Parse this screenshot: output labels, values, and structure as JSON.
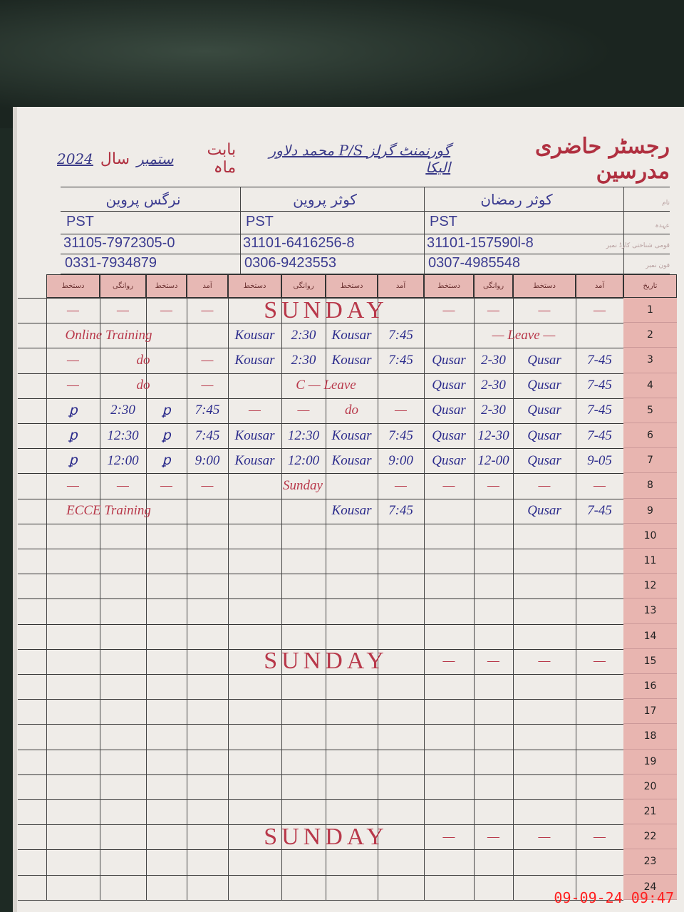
{
  "register": {
    "title_printed": "رجسٹر حاضری مدرسین",
    "school_handwritten": "گورنمنٹ گرلز P/S محمد دلاور الیکا",
    "month_label": "بابت ماہ",
    "month": "ستمبر",
    "year_label": "سال",
    "year": "2024"
  },
  "row_labels": {
    "name": "نام",
    "designation": "عہدہ",
    "cnic": "قومی شناختی کارڈ نمبر",
    "phone": "فون نمبر",
    "date": "تاریخ"
  },
  "teachers": [
    {
      "name": "نرگس پروین",
      "designation": "PST",
      "cnic": "31105-7972305-0",
      "phone": "0331-7934879"
    },
    {
      "name": "کوثر پروین",
      "designation": "PST",
      "cnic": "31101-6416256-8",
      "phone": "0306-9423553"
    },
    {
      "name": "کوثر رمضان",
      "designation": "PST",
      "cnic": "31101-157590l-8",
      "phone": "0307-4985548"
    }
  ],
  "column_headers": [
    "دستخط",
    "روانگی",
    "دستخط",
    "آمد"
  ],
  "rows": [
    {
      "day": "1",
      "segs": [
        [
          "—",
          1,
          "red"
        ],
        [
          "—",
          1,
          "red"
        ],
        [
          "—",
          1,
          "red"
        ],
        [
          "—",
          1,
          "red"
        ],
        [
          "SUNDAY",
          4,
          "sunday"
        ],
        [
          "—",
          1,
          "red"
        ],
        [
          "—",
          1,
          "red"
        ],
        [
          "—",
          1,
          "red"
        ],
        [
          "—",
          1,
          "red"
        ]
      ]
    },
    {
      "day": "2",
      "segs": [
        [
          "Online Training",
          4,
          "red"
        ],
        [
          "Kousar",
          1,
          "blue"
        ],
        [
          "2:30",
          1,
          "blue"
        ],
        [
          "Kousar",
          1,
          "blue"
        ],
        [
          "7:45",
          1,
          "blue"
        ],
        [
          "— Leave —",
          4,
          "red"
        ]
      ]
    },
    {
      "day": "3",
      "segs": [
        [
          "—",
          1,
          "red"
        ],
        [
          "do",
          2,
          "red"
        ],
        [
          "—",
          1,
          "red"
        ],
        [
          "Kousar",
          1,
          "blue"
        ],
        [
          "2:30",
          1,
          "blue"
        ],
        [
          "Kousar",
          1,
          "blue"
        ],
        [
          "7:45",
          1,
          "blue"
        ],
        [
          "Qusar",
          1,
          "blue"
        ],
        [
          "2-30",
          1,
          "blue"
        ],
        [
          "Qusar",
          1,
          "blue"
        ],
        [
          "7-45",
          1,
          "blue"
        ]
      ]
    },
    {
      "day": "4",
      "segs": [
        [
          "—",
          1,
          "red"
        ],
        [
          "do",
          2,
          "red"
        ],
        [
          "—",
          1,
          "red"
        ],
        [
          "C — Leave",
          4,
          "red"
        ],
        [
          "Qusar",
          1,
          "blue"
        ],
        [
          "2-30",
          1,
          "blue"
        ],
        [
          "Qusar",
          1,
          "blue"
        ],
        [
          "7-45",
          1,
          "blue"
        ]
      ]
    },
    {
      "day": "5",
      "segs": [
        [
          "ꝑ",
          1,
          "blue"
        ],
        [
          "2:30",
          1,
          "blue"
        ],
        [
          "ꝑ",
          1,
          "blue"
        ],
        [
          "7:45",
          1,
          "blue"
        ],
        [
          "—",
          1,
          "red"
        ],
        [
          "—",
          1,
          "red"
        ],
        [
          "do",
          1,
          "red"
        ],
        [
          "—",
          1,
          "red"
        ],
        [
          "Qusar",
          1,
          "blue"
        ],
        [
          "2-30",
          1,
          "blue"
        ],
        [
          "Qusar",
          1,
          "blue"
        ],
        [
          "7-45",
          1,
          "blue"
        ]
      ]
    },
    {
      "day": "6",
      "segs": [
        [
          "ꝑ",
          1,
          "blue"
        ],
        [
          "12:30",
          1,
          "blue"
        ],
        [
          "ꝑ",
          1,
          "blue"
        ],
        [
          "7:45",
          1,
          "blue"
        ],
        [
          "Kousar",
          1,
          "blue"
        ],
        [
          "12:30",
          1,
          "blue"
        ],
        [
          "Kousar",
          1,
          "blue"
        ],
        [
          "7:45",
          1,
          "blue"
        ],
        [
          "Qusar",
          1,
          "blue"
        ],
        [
          "12-30",
          1,
          "blue"
        ],
        [
          "Qusar",
          1,
          "blue"
        ],
        [
          "7-45",
          1,
          "blue"
        ]
      ]
    },
    {
      "day": "7",
      "segs": [
        [
          "ꝑ",
          1,
          "blue"
        ],
        [
          "12:00",
          1,
          "blue"
        ],
        [
          "ꝑ",
          1,
          "blue"
        ],
        [
          "9:00",
          1,
          "blue"
        ],
        [
          "Kousar",
          1,
          "blue"
        ],
        [
          "12:00",
          1,
          "blue"
        ],
        [
          "Kousar",
          1,
          "blue"
        ],
        [
          "9:00",
          1,
          "blue"
        ],
        [
          "Qusar",
          1,
          "blue"
        ],
        [
          "12-00",
          1,
          "blue"
        ],
        [
          "Qusar",
          1,
          "blue"
        ],
        [
          "9-05",
          1,
          "blue"
        ]
      ]
    },
    {
      "day": "8",
      "segs": [
        [
          "—",
          1,
          "red"
        ],
        [
          "—",
          1,
          "red"
        ],
        [
          "—",
          1,
          "red"
        ],
        [
          "—",
          1,
          "red"
        ],
        [
          "Sunday",
          3,
          "red"
        ],
        [
          "—",
          1,
          "red"
        ],
        [
          "—",
          1,
          "red"
        ],
        [
          "—",
          1,
          "red"
        ],
        [
          "—",
          1,
          "red"
        ],
        [
          "—",
          1,
          "red"
        ]
      ]
    },
    {
      "day": "9",
      "segs": [
        [
          "ECCE Training",
          4,
          "red"
        ],
        [
          "",
          2,
          "blue"
        ],
        [
          "Kousar",
          1,
          "blue"
        ],
        [
          "7:45",
          1,
          "blue"
        ],
        [
          "",
          2,
          "blue"
        ],
        [
          "Qusar",
          1,
          "blue"
        ],
        [
          "7-45",
          1,
          "blue"
        ]
      ]
    },
    {
      "day": "10",
      "segs": []
    },
    {
      "day": "11",
      "segs": []
    },
    {
      "day": "12",
      "segs": []
    },
    {
      "day": "13",
      "segs": []
    },
    {
      "day": "14",
      "segs": []
    },
    {
      "day": "15",
      "segs": [
        [
          "",
          4,
          "red"
        ],
        [
          "SUNDAY",
          4,
          "sunday"
        ],
        [
          "—",
          1,
          "red"
        ],
        [
          "—",
          1,
          "red"
        ],
        [
          "—",
          1,
          "red"
        ],
        [
          "—",
          1,
          "red"
        ]
      ]
    },
    {
      "day": "16",
      "segs": []
    },
    {
      "day": "17",
      "segs": []
    },
    {
      "day": "18",
      "segs": []
    },
    {
      "day": "19",
      "segs": []
    },
    {
      "day": "20",
      "segs": []
    },
    {
      "day": "21",
      "segs": []
    },
    {
      "day": "22",
      "segs": [
        [
          "",
          4,
          "red"
        ],
        [
          "SUNDAY",
          4,
          "sunday"
        ],
        [
          "—",
          1,
          "red"
        ],
        [
          "—",
          1,
          "red"
        ],
        [
          "—",
          1,
          "red"
        ],
        [
          "—",
          1,
          "red"
        ]
      ]
    },
    {
      "day": "23",
      "segs": []
    },
    {
      "day": "24",
      "segs": []
    }
  ],
  "camera_timestamp": "09-09-24  09:47",
  "colors": {
    "ink_blue": "#2c2c8c",
    "ink_red": "#b8384a",
    "header_pink": "#e7b8b4"
  }
}
